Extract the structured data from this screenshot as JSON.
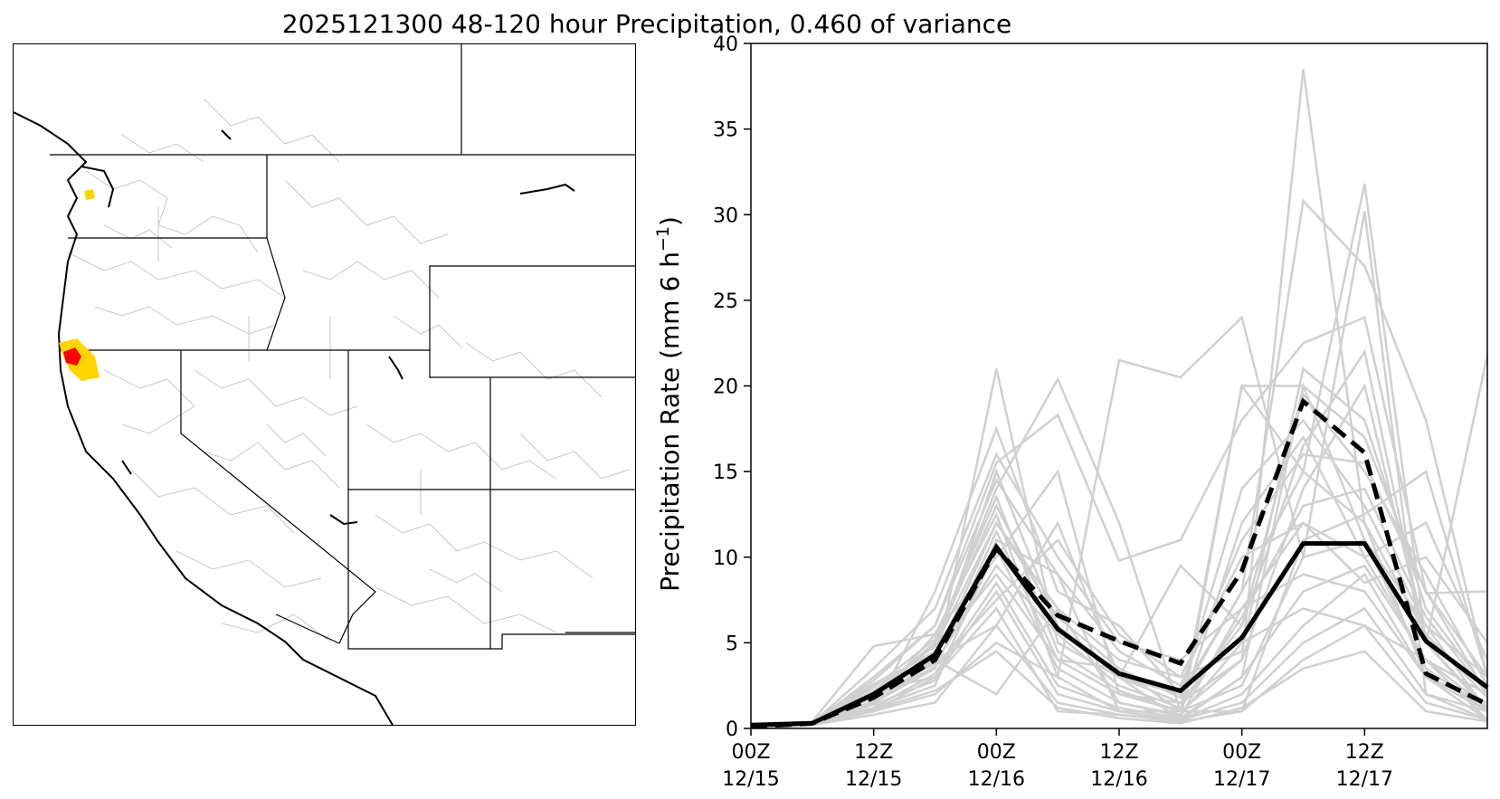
{
  "title": "2025121300 48-120 hour Precipitation, 0.460 of variance",
  "map": {
    "highlight_colors": {
      "region": "#ffd400",
      "core": "#ff0000"
    },
    "state_color": "#000000",
    "basin_color": "#c8c8c8"
  },
  "chart_data": {
    "type": "line",
    "ylabel": "Precipitation Rate (mm 6 h",
    "ylabel_sup": "−1",
    "ylabel_close": ")",
    "ylim": [
      0,
      40
    ],
    "yticks": [
      "0",
      "5",
      "10",
      "15",
      "20",
      "25",
      "30",
      "35",
      "40"
    ],
    "xticks": [
      {
        "top": "00Z",
        "bottom": "12/15"
      },
      {
        "top": "12Z",
        "bottom": "12/15"
      },
      {
        "top": "00Z",
        "bottom": "12/16"
      },
      {
        "top": "12Z",
        "bottom": "12/16"
      },
      {
        "top": "00Z",
        "bottom": "12/17"
      },
      {
        "top": "12Z",
        "bottom": "12/17"
      }
    ],
    "x_steps": [
      "00Z 12/15",
      "06Z 12/15",
      "12Z 12/15",
      "18Z 12/15",
      "00Z 12/16",
      "06Z 12/16",
      "12Z 12/16",
      "18Z 12/16",
      "00Z 12/17",
      "06Z 12/17",
      "12Z 12/17",
      "18Z 12/17",
      "00Z 12/18"
    ],
    "highlighted_series": [
      {
        "style": "solid",
        "values": [
          0.2,
          0.3,
          2.0,
          4.3,
          10.6,
          5.8,
          3.2,
          2.2,
          5.3,
          10.8,
          10.8,
          5.1,
          2.4
        ]
      },
      {
        "style": "dashed",
        "values": [
          0.1,
          0.3,
          1.8,
          4.0,
          10.5,
          6.6,
          5.1,
          3.8,
          9.2,
          19.1,
          16.1,
          3.2,
          1.4
        ]
      }
    ],
    "ensemble_members": [
      [
        0.1,
        0.2,
        1.5,
        3.5,
        21.0,
        5.0,
        3.0,
        1.5,
        4.0,
        38.5,
        12.0,
        3.0,
        1.5
      ],
      [
        0.1,
        0.3,
        2.0,
        5.0,
        14.0,
        20.4,
        12.0,
        1.0,
        20.0,
        15.0,
        31.8,
        5.0,
        21.8
      ],
      [
        0.2,
        0.4,
        4.8,
        5.5,
        12.5,
        3.0,
        21.5,
        20.5,
        24.0,
        10.0,
        30.2,
        2.0,
        1.0
      ],
      [
        0.1,
        0.2,
        1.0,
        8.0,
        17.5,
        8.0,
        6.0,
        2.0,
        8.0,
        30.8,
        27.0,
        18.0,
        3.0
      ],
      [
        0.1,
        0.3,
        3.0,
        6.0,
        15.5,
        18.3,
        9.8,
        11.0,
        18.0,
        22.5,
        24.0,
        8.0,
        2.0
      ],
      [
        0.2,
        0.3,
        1.2,
        2.5,
        11.0,
        9.0,
        1.0,
        0.5,
        20.0,
        20.0,
        17.0,
        7.9,
        8.0
      ],
      [
        0.0,
        0.2,
        2.5,
        4.5,
        9.0,
        4.0,
        2.0,
        1.5,
        6.0,
        19.5,
        15.0,
        9.0,
        2.5
      ],
      [
        0.1,
        0.4,
        1.8,
        5.0,
        13.0,
        6.0,
        3.0,
        2.0,
        14.0,
        18.0,
        13.0,
        6.0,
        3.0
      ],
      [
        0.1,
        0.2,
        2.2,
        3.0,
        8.0,
        2.0,
        1.0,
        1.0,
        4.0,
        14.0,
        20.0,
        5.0,
        1.0
      ],
      [
        0.2,
        0.3,
        1.5,
        4.0,
        12.0,
        7.0,
        4.0,
        3.0,
        10.0,
        12.0,
        10.0,
        4.0,
        2.0
      ],
      [
        0.1,
        0.3,
        3.5,
        7.0,
        16.0,
        10.0,
        5.0,
        4.0,
        7.0,
        9.0,
        8.0,
        3.0,
        1.0
      ],
      [
        0.1,
        0.2,
        1.0,
        3.0,
        7.0,
        1.0,
        0.8,
        0.5,
        2.0,
        6.0,
        9.0,
        3.0,
        0.5
      ],
      [
        0.1,
        0.3,
        2.0,
        4.0,
        6.0,
        12.0,
        3.0,
        0.5,
        3.0,
        20.0,
        11.0,
        6.0,
        1.0
      ],
      [
        0.1,
        0.2,
        1.5,
        5.5,
        10.0,
        15.0,
        2.0,
        1.0,
        12.0,
        17.0,
        10.0,
        12.0,
        4.0
      ],
      [
        0.1,
        0.3,
        2.5,
        4.0,
        2.0,
        7.0,
        1.5,
        0.8,
        5.0,
        7.0,
        6.0,
        4.0,
        0.5
      ],
      [
        0.2,
        0.4,
        2.0,
        3.5,
        11.5,
        4.0,
        3.5,
        1.0,
        1.0,
        11.0,
        12.5,
        15.0,
        3.0
      ],
      [
        0.1,
        0.2,
        1.0,
        2.0,
        5.0,
        3.0,
        1.0,
        0.5,
        1.5,
        5.0,
        7.0,
        2.0,
        0.5
      ],
      [
        0.1,
        0.3,
        1.8,
        3.8,
        9.5,
        5.5,
        2.5,
        1.2,
        6.5,
        13.0,
        14.0,
        6.5,
        2.0
      ],
      [
        0.1,
        0.2,
        1.2,
        3.2,
        8.5,
        2.5,
        1.2,
        0.6,
        3.0,
        8.0,
        9.5,
        4.0,
        1.2
      ],
      [
        0.2,
        0.3,
        2.8,
        6.0,
        14.5,
        9.0,
        4.5,
        2.5,
        11.0,
        16.0,
        15.5,
        8.0,
        3.0
      ],
      [
        0.1,
        0.2,
        0.8,
        1.5,
        6.0,
        1.5,
        0.8,
        0.4,
        1.0,
        4.0,
        6.0,
        1.5,
        0.5
      ],
      [
        0.1,
        0.3,
        2.2,
        4.8,
        12.0,
        6.5,
        3.5,
        1.8,
        8.0,
        15.0,
        12.0,
        5.5,
        1.8
      ],
      [
        0.1,
        0.2,
        1.6,
        3.6,
        7.5,
        11.0,
        5.5,
        3.0,
        4.5,
        21.0,
        18.0,
        7.0,
        2.2
      ],
      [
        0.1,
        0.3,
        2.4,
        5.2,
        13.5,
        4.5,
        2.2,
        1.0,
        2.5,
        10.0,
        11.0,
        3.5,
        1.0
      ],
      [
        0.1,
        0.2,
        1.4,
        2.8,
        10.5,
        3.5,
        1.5,
        0.7,
        7.0,
        12.0,
        8.5,
        10.0,
        5.0
      ],
      [
        0.2,
        0.3,
        2.6,
        4.4,
        15.0,
        6.0,
        3.0,
        9.5,
        6.0,
        16.5,
        22.0,
        5.0,
        1.2
      ],
      [
        0.1,
        0.2,
        1.1,
        2.2,
        4.5,
        1.2,
        0.6,
        0.3,
        1.2,
        3.5,
        4.5,
        1.0,
        0.4
      ]
    ]
  }
}
